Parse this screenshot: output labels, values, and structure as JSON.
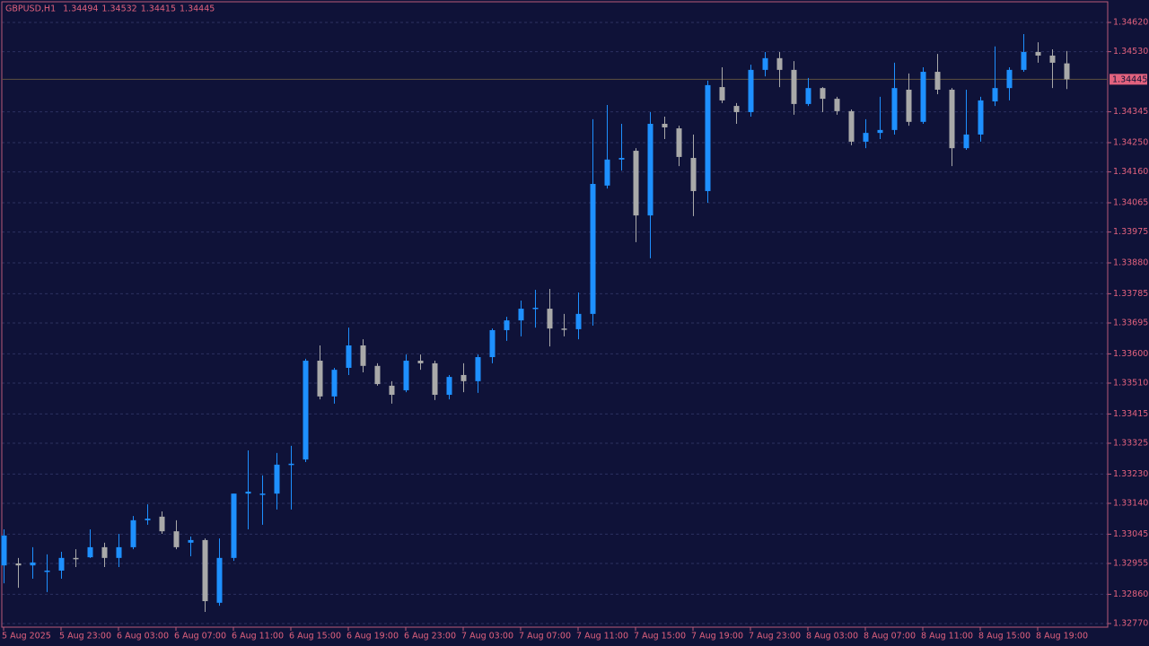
{
  "chart_data": {
    "type": "candlestick",
    "title": "GBPUSD,H1",
    "up_color": "#1e90ff",
    "down_color": "#a9a9a9",
    "border_color": "#b85a78",
    "price_line_color": "#5e5040",
    "grid": true,
    "categories": [
      "5 Aug 2025",
      null,
      null,
      null,
      "5 Aug 23:00",
      null,
      null,
      null,
      "6 Aug 03:00",
      null,
      null,
      null,
      "6 Aug 07:00",
      null,
      null,
      null,
      "6 Aug 11:00",
      null,
      null,
      null,
      "6 Aug 15:00",
      null,
      null,
      null,
      "6 Aug 19:00",
      null,
      null,
      null,
      "6 Aug 23:00",
      null,
      null,
      null,
      "7 Aug 03:00",
      null,
      null,
      null,
      "7 Aug 07:00",
      null,
      null,
      null,
      "7 Aug 11:00",
      null,
      null,
      null,
      "7 Aug 15:00",
      null,
      null,
      null,
      "7 Aug 19:00",
      null,
      null,
      null,
      "7 Aug 23:00",
      null,
      null,
      null,
      "8 Aug 03:00",
      null,
      null,
      null,
      "8 Aug 07:00",
      null,
      null,
      null,
      "8 Aug 11:00",
      null,
      null,
      null,
      "8 Aug 15:00",
      null,
      null,
      null,
      "8 Aug 19:00",
      null,
      null
    ],
    "open": [
      1.32949,
      1.32955,
      1.32949,
      1.3293,
      1.32933,
      1.32972,
      1.32974,
      1.33005,
      1.32972,
      1.33005,
      1.33088,
      1.33099,
      1.33054,
      1.33019,
      1.33027,
      1.32834,
      1.32972,
      1.3317,
      1.3317,
      1.3317,
      1.33259,
      1.33275,
      1.33579,
      1.33469,
      1.33557,
      1.33626,
      1.33563,
      1.33502,
      1.33488,
      1.33579,
      1.33571,
      1.33474,
      1.33535,
      1.33516,
      1.3359,
      1.33673,
      1.33703,
      1.33739,
      1.33739,
      1.33678,
      1.33676,
      1.33723,
      1.34118,
      1.34198,
      1.34225,
      1.34026,
      1.34308,
      1.34294,
      1.34203,
      1.34101,
      1.34421,
      1.34363,
      1.34344,
      1.34474,
      1.3451,
      1.34474,
      1.34369,
      1.34418,
      1.34385,
      1.34347,
      1.34253,
      1.3428,
      1.34289,
      1.34413,
      1.34314,
      1.34468,
      1.34413,
      1.34233,
      1.34275,
      1.34377,
      1.34418,
      1.34474,
      1.34529,
      1.34518,
      1.34494
    ],
    "high": [
      1.3306,
      1.32972,
      1.33005,
      1.32983,
      1.32991,
      1.32999,
      1.3306,
      1.33019,
      1.33046,
      1.33101,
      1.33137,
      1.33115,
      1.33088,
      1.33038,
      1.33032,
      1.33032,
      1.3317,
      1.33303,
      1.33226,
      1.33295,
      1.33317,
      1.33585,
      1.33626,
      1.33557,
      1.33681,
      1.33645,
      1.33571,
      1.33516,
      1.33598,
      1.33598,
      1.33579,
      1.33535,
      1.33571,
      1.33598,
      1.33678,
      1.33714,
      1.33764,
      1.33797,
      1.338,
      1.33723,
      1.33789,
      1.34322,
      1.34366,
      1.34308,
      1.34233,
      1.34344,
      1.3433,
      1.34302,
      1.34275,
      1.34441,
      1.34482,
      1.34372,
      1.3449,
      1.34529,
      1.34529,
      1.34501,
      1.34449,
      1.34421,
      1.34391,
      1.34352,
      1.34322,
      1.34391,
      1.34496,
      1.34463,
      1.34482,
      1.34523,
      1.34418,
      1.34413,
      1.34391,
      1.34546,
      1.34482,
      1.34584,
      1.34559,
      1.34537,
      1.34532
    ],
    "low": [
      1.32894,
      1.3288,
      1.32908,
      1.32867,
      1.32908,
      1.32944,
      1.32972,
      1.32944,
      1.32944,
      1.32999,
      1.33074,
      1.33046,
      1.32999,
      1.32977,
      1.32806,
      1.32825,
      1.32963,
      1.3306,
      1.33074,
      1.33121,
      1.33121,
      1.33267,
      1.3346,
      1.33447,
      1.33535,
      1.33543,
      1.33502,
      1.33447,
      1.33482,
      1.33551,
      1.33458,
      1.3346,
      1.33482,
      1.3348,
      1.33571,
      1.3364,
      1.33654,
      1.33681,
      1.33623,
      1.33654,
      1.33645,
      1.33687,
      1.34109,
      1.34164,
      1.33944,
      1.33894,
      1.34261,
      1.34178,
      1.34024,
      1.34065,
      1.34372,
      1.34308,
      1.3433,
      1.34454,
      1.34421,
      1.34336,
      1.34363,
      1.34344,
      1.34336,
      1.34242,
      1.34233,
      1.34261,
      1.34275,
      1.34302,
      1.34308,
      1.34399,
      1.34178,
      1.34228,
      1.34253,
      1.34363,
      1.3438,
      1.34468,
      1.34496,
      1.34418,
      1.34415
    ],
    "close": [
      1.33041,
      1.32949,
      1.32958,
      1.32933,
      1.32972,
      1.32969,
      1.33005,
      1.32972,
      1.33005,
      1.33088,
      1.33093,
      1.33054,
      1.33005,
      1.33027,
      1.32839,
      1.32972,
      1.3317,
      1.33176,
      1.3317,
      1.33259,
      1.33262,
      1.33579,
      1.33469,
      1.33551,
      1.33626,
      1.33563,
      1.33507,
      1.33474,
      1.33579,
      1.33571,
      1.33474,
      1.33529,
      1.33516,
      1.3359,
      1.33673,
      1.33703,
      1.33739,
      1.33742,
      1.33678,
      1.33676,
      1.33723,
      1.34123,
      1.34198,
      1.34203,
      1.34026,
      1.34308,
      1.34297,
      1.34206,
      1.34101,
      1.34427,
      1.3438,
      1.34344,
      1.34474,
      1.3451,
      1.34474,
      1.34369,
      1.34418,
      1.34385,
      1.34347,
      1.34253,
      1.3428,
      1.34289,
      1.34418,
      1.34314,
      1.34468,
      1.34413,
      1.34233,
      1.34275,
      1.3438,
      1.34418,
      1.34474,
      1.34529,
      1.34518,
      1.34496,
      1.34445
    ],
    "ylim": [
      1.3277,
      1.3462
    ],
    "yticks": [
      {
        "value": 1.3462,
        "label": "1.34620"
      },
      {
        "value": 1.3453,
        "label": "1.34530"
      },
      1.34345,
      {
        "value": 1.3425,
        "label": "1.34250"
      },
      {
        "value": 1.3416,
        "label": "1.34160"
      },
      1.34065,
      1.33975,
      {
        "value": 1.3388,
        "label": "1.33880"
      },
      1.33785,
      1.33695,
      {
        "value": 1.336,
        "label": "1.33600"
      },
      {
        "value": 1.3351,
        "label": "1.33510"
      },
      1.33415,
      1.33325,
      {
        "value": 1.3323,
        "label": "1.33230"
      },
      {
        "value": 1.3314,
        "label": "1.33140"
      },
      1.33045,
      1.32955,
      {
        "value": 1.3286,
        "label": "1.32860"
      },
      {
        "value": 1.3277,
        "label": "1.32770"
      }
    ]
  }
}
